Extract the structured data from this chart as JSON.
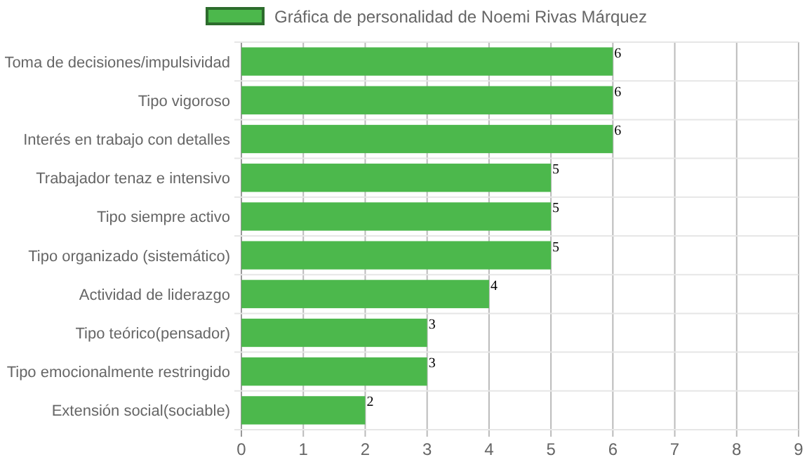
{
  "chart_data": {
    "type": "bar",
    "orientation": "horizontal",
    "categories": [
      "Toma de decisiones/impulsividad",
      "Tipo vigoroso",
      "Interés en trabajo con detalles",
      "Trabajador tenaz e intensivo",
      "Tipo siempre activo",
      "Tipo organizado (sistemático)",
      "Actividad de liderazgo",
      "Tipo teórico(pensador)",
      "Tipo emocionalmente restringido",
      "Extensión social(sociable)"
    ],
    "series": [
      {
        "name": "Gráfica de personalidad de Noemi Rivas Márquez",
        "color": "#4cb84c",
        "values": [
          6,
          6,
          6,
          5,
          5,
          5,
          4,
          3,
          3,
          2
        ]
      }
    ],
    "xlim": [
      0,
      9
    ],
    "xticks": [
      0,
      1,
      2,
      3,
      4,
      5,
      6,
      7,
      8,
      9
    ],
    "grid": true,
    "legend": "top",
    "data_labels": true
  }
}
